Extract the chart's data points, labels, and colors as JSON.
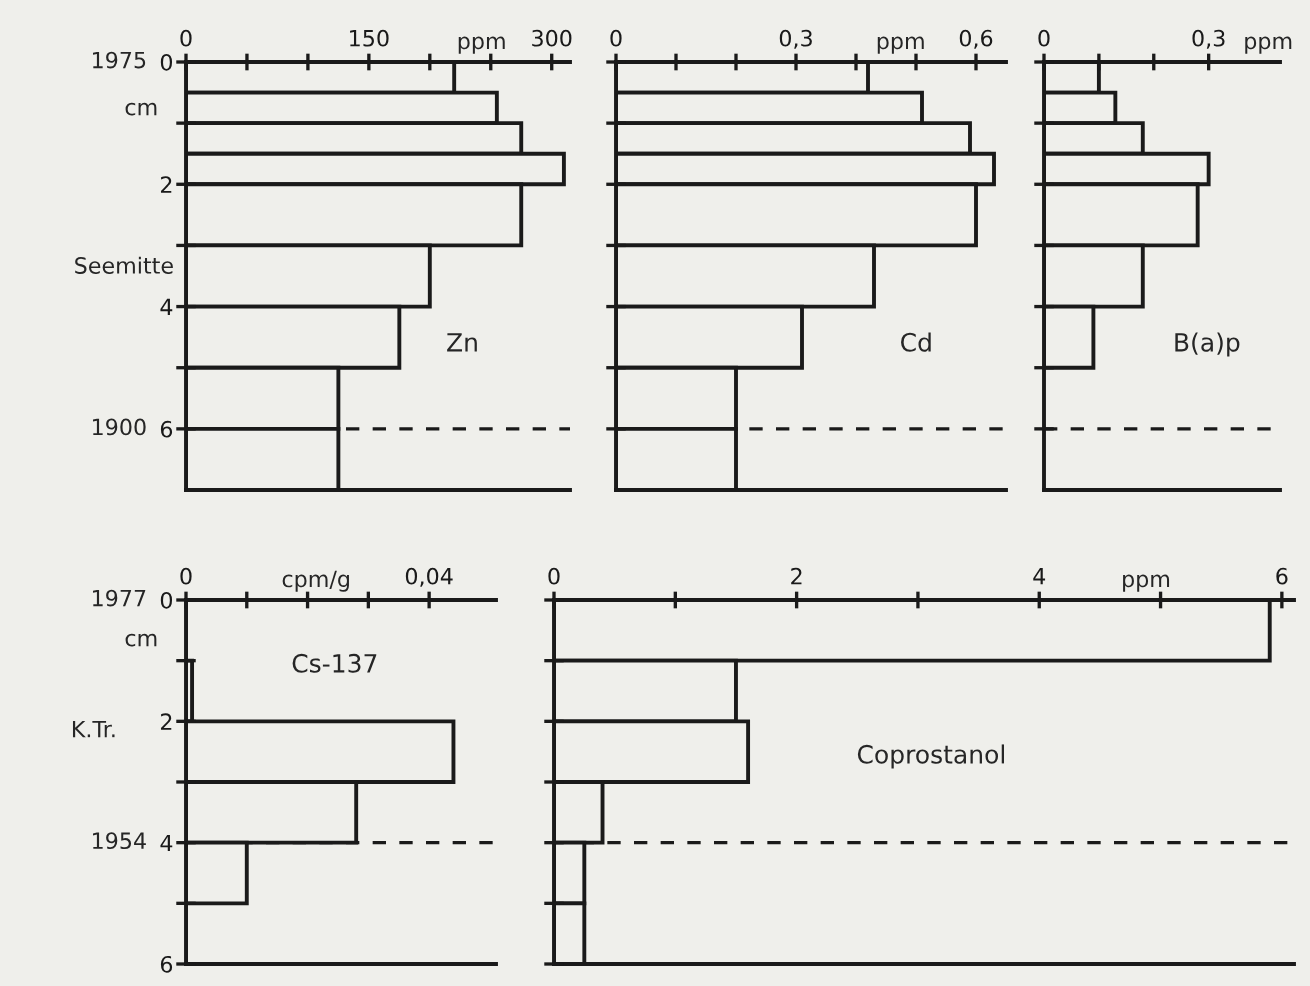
{
  "chart_data": [
    {
      "type": "histogram",
      "orientation": "horizontal",
      "title": "Zn",
      "xlabel": "ppm",
      "ylabel": "cm",
      "color": "#1a1a1a",
      "bins": [
        0,
        0.5,
        1,
        1.5,
        2,
        3,
        4,
        5,
        6,
        7
      ],
      "values": [
        220,
        255,
        275,
        310,
        275,
        200,
        175,
        125,
        125
      ],
      "xlim": [
        0,
        315
      ],
      "xticks": [
        0,
        {
          "value": 50,
          "label": null
        },
        {
          "value": 100,
          "label": null
        },
        150,
        {
          "value": 200,
          "label": null
        },
        {
          "value": 250,
          "label": null
        },
        300
      ],
      "ylim": [
        7,
        0
      ],
      "yticks": [
        0,
        {
          "value": 1,
          "label": null
        },
        2,
        {
          "value": 3,
          "label": null
        },
        4,
        {
          "value": 5,
          "label": null
        },
        6
      ],
      "ref_lines": [
        {
          "axis": "y",
          "value": 6,
          "line_style": "dashed"
        }
      ],
      "annotations": [
        "1975",
        "Seemitte",
        "1900"
      ],
      "grid": false,
      "legend": false
    },
    {
      "type": "histogram",
      "orientation": "horizontal",
      "title": "Cd",
      "xlabel": "ppm",
      "color": "#1a1a1a",
      "bins": [
        0,
        0.5,
        1,
        1.5,
        2,
        3,
        4,
        5,
        6,
        7
      ],
      "values": [
        0.42,
        0.51,
        0.59,
        0.63,
        0.6,
        0.43,
        0.31,
        0.2,
        0.2
      ],
      "xlim": [
        0,
        0.65
      ],
      "xticks": [
        0,
        {
          "value": 0.1,
          "label": null
        },
        {
          "value": 0.2,
          "label": null
        },
        {
          "value": 0.3,
          "label": "0,3"
        },
        {
          "value": 0.4,
          "label": null
        },
        {
          "value": 0.5,
          "label": null
        },
        {
          "value": 0.6,
          "label": "0,6"
        }
      ],
      "ylim": [
        7,
        0
      ],
      "yticks": [
        0,
        1,
        2,
        3,
        4,
        5,
        6
      ],
      "tick_labels": "x",
      "ref_lines": [
        {
          "axis": "y",
          "value": 6,
          "line_style": "dashed"
        }
      ],
      "grid": false,
      "legend": false
    },
    {
      "type": "histogram",
      "orientation": "horizontal",
      "title": "B(a)p",
      "xlabel": "ppm",
      "color": "#1a1a1a",
      "bins": [
        0,
        0.5,
        1,
        1.5,
        2,
        3,
        4,
        5
      ],
      "values": [
        0.1,
        0.13,
        0.18,
        0.3,
        0.28,
        0.18,
        0.09
      ],
      "xlim": [
        0,
        0.43
      ],
      "xticks": [
        0,
        {
          "value": 0.1,
          "label": null
        },
        {
          "value": 0.2,
          "label": null
        },
        {
          "value": 0.3,
          "label": "0,3"
        }
      ],
      "ylim": [
        7,
        0
      ],
      "yticks": [
        0,
        1,
        2,
        3,
        4,
        5,
        6
      ],
      "tick_labels": "x",
      "ref_lines": [
        {
          "axis": "y",
          "value": 6,
          "line_style": "dashed"
        }
      ],
      "grid": false,
      "legend": false
    },
    {
      "type": "histogram",
      "orientation": "horizontal",
      "title": "Cs-137",
      "xlabel": "cpm/g",
      "ylabel": "cm",
      "color": "#1a1a1a",
      "bins": [
        0,
        1,
        2,
        3,
        4,
        5,
        6
      ],
      "values": [
        0,
        0.001,
        0.044,
        0.028,
        0.01,
        0
      ],
      "xlim": [
        0,
        0.051
      ],
      "xticks": [
        0,
        {
          "value": 0.01,
          "label": null
        },
        {
          "value": 0.02,
          "label": null
        },
        {
          "value": 0.03,
          "label": null
        },
        {
          "value": 0.04,
          "label": "0,04"
        }
      ],
      "ylim": [
        6,
        0
      ],
      "yticks": [
        0,
        {
          "value": 1,
          "label": null
        },
        2,
        {
          "value": 3,
          "label": null
        },
        4,
        {
          "value": 5,
          "label": null
        },
        6
      ],
      "ref_lines": [
        {
          "axis": "y",
          "value": 4,
          "line_style": "dashed"
        }
      ],
      "annotations": [
        "1977",
        "K.Tr.",
        "1954"
      ],
      "grid": false,
      "legend": false
    },
    {
      "type": "histogram",
      "orientation": "horizontal",
      "title": "Coprostanol",
      "xlabel": "ppm",
      "color": "#1a1a1a",
      "bins": [
        0,
        1,
        2,
        3,
        4,
        5,
        6
      ],
      "values": [
        5.9,
        1.5,
        1.6,
        0.4,
        0.25,
        0.25
      ],
      "xlim": [
        0,
        6.1
      ],
      "xticks": [
        0,
        {
          "value": 1,
          "label": null
        },
        2,
        {
          "value": 3,
          "label": null
        },
        4,
        {
          "value": 5,
          "label": null
        },
        6
      ],
      "ylim": [
        6,
        0
      ],
      "yticks": [
        0,
        1,
        2,
        3,
        4,
        5,
        6
      ],
      "tick_labels": "x",
      "ref_lines": [
        {
          "axis": "y",
          "value": 4,
          "line_style": "dashed"
        }
      ],
      "grid": false,
      "legend": false
    }
  ]
}
